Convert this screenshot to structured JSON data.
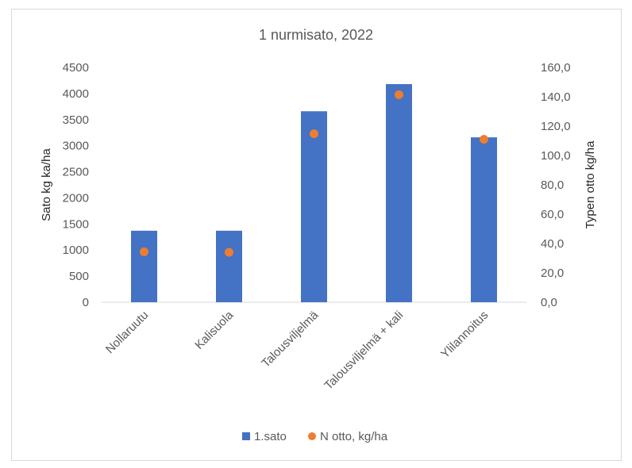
{
  "chart_data": {
    "type": "bar",
    "title": "1 nurmisato, 2022",
    "categories": [
      "Nollaruutu",
      "Kalisuola",
      "Talousviljelmä",
      "Talousviljelmä + kali",
      "Ylilannoitus"
    ],
    "series": [
      {
        "name": "1.sato",
        "type": "bar",
        "axis": "left",
        "values": [
          1370,
          1370,
          3660,
          4180,
          3160
        ],
        "color": "#4472C4"
      },
      {
        "name": "N otto, kg/ha",
        "type": "scatter",
        "axis": "right",
        "values": [
          34.3,
          34.0,
          114.8,
          141.4,
          111.0
        ],
        "color": "#ED7D31"
      }
    ],
    "y_left": {
      "label": "Sato kg ka/ha",
      "range": [
        0,
        4500
      ],
      "ticks": [
        "0",
        "500",
        "1000",
        "1500",
        "2000",
        "2500",
        "3000",
        "3500",
        "4000",
        "4500"
      ]
    },
    "y_right": {
      "label": "Typen otto kg/ha",
      "range": [
        0,
        160
      ],
      "ticks": [
        "0,0",
        "20,0",
        "40,0",
        "60,0",
        "80,0",
        "100,0",
        "120,0",
        "140,0",
        "160,0"
      ]
    },
    "grid": false,
    "legend_position": "bottom"
  }
}
